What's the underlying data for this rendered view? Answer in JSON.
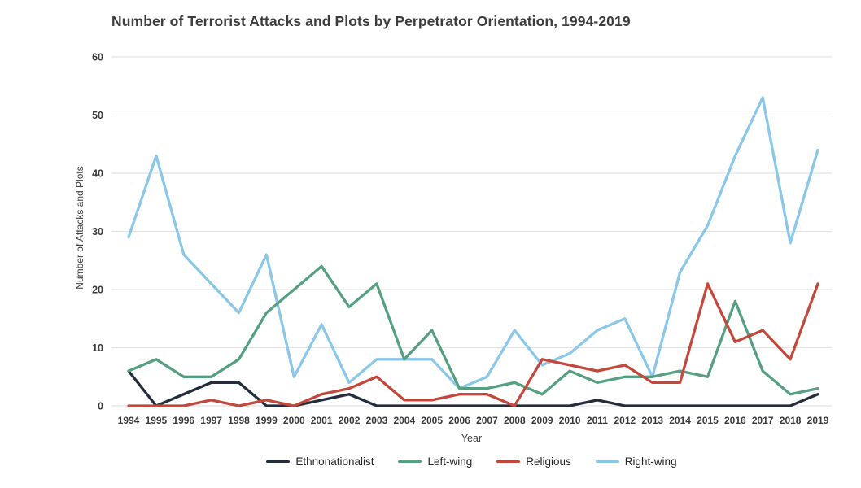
{
  "chart_data": {
    "type": "line",
    "title": "Number of Terrorist Attacks and Plots by Perpetrator Orientation, 1994-2019",
    "xlabel": "Year",
    "ylabel": "Number of Attacks and Plots",
    "x": [
      1994,
      1995,
      1996,
      1997,
      1998,
      1999,
      2000,
      2001,
      2002,
      2003,
      2004,
      2005,
      2006,
      2007,
      2008,
      2009,
      2010,
      2011,
      2012,
      2013,
      2014,
      2015,
      2016,
      2017,
      2018,
      2019
    ],
    "ylim": [
      0,
      60
    ],
    "yticks": [
      0,
      10,
      20,
      30,
      40,
      50,
      60
    ],
    "grid": "horizontal",
    "legend_position": "bottom",
    "series": [
      {
        "name": "Ethnonationalist",
        "color": "#232d3d",
        "values": [
          6,
          0,
          2,
          4,
          4,
          0,
          0,
          1,
          2,
          0,
          0,
          0,
          0,
          0,
          0,
          0,
          0,
          1,
          0,
          0,
          0,
          0,
          0,
          0,
          0,
          2
        ]
      },
      {
        "name": "Left-wing",
        "color": "#55a081",
        "values": [
          6,
          8,
          5,
          5,
          8,
          16,
          20,
          24,
          17,
          21,
          8,
          13,
          3,
          3,
          4,
          2,
          6,
          4,
          5,
          5,
          6,
          5,
          18,
          6,
          2,
          3
        ]
      },
      {
        "name": "Religious",
        "color": "#c4473c",
        "values": [
          0,
          0,
          0,
          1,
          0,
          1,
          0,
          2,
          3,
          5,
          1,
          1,
          2,
          2,
          0,
          8,
          7,
          6,
          7,
          4,
          4,
          21,
          11,
          13,
          8,
          21
        ]
      },
      {
        "name": "Right-wing",
        "color": "#8bc7e8",
        "values": [
          29,
          43,
          26,
          21,
          16,
          26,
          5,
          14,
          4,
          8,
          8,
          8,
          3,
          5,
          13,
          7,
          9,
          13,
          15,
          5,
          23,
          31,
          43,
          53,
          28,
          44
        ]
      }
    ],
    "draw_order": [
      3,
      0,
      1,
      2
    ],
    "style": {
      "grid_color": "#e4e4e4",
      "tick_label_color": "#3a3a3a",
      "background": "#ffffff"
    }
  }
}
